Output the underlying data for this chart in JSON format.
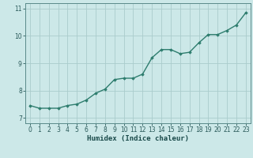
{
  "x": [
    0,
    1,
    2,
    3,
    4,
    5,
    6,
    7,
    8,
    9,
    10,
    11,
    12,
    13,
    14,
    15,
    16,
    17,
    18,
    19,
    20,
    21,
    22,
    23
  ],
  "y": [
    7.45,
    7.35,
    7.35,
    7.35,
    7.45,
    7.5,
    7.65,
    7.9,
    8.05,
    8.4,
    8.45,
    8.45,
    8.6,
    9.2,
    9.5,
    9.5,
    9.35,
    9.4,
    9.75,
    10.05,
    10.05,
    10.2,
    10.4,
    10.85
  ],
  "line_color": "#2e7d6e",
  "marker": "D",
  "marker_size": 1.8,
  "line_width": 1.0,
  "bg_color": "#cce8e8",
  "grid_color": "#aacccc",
  "xlabel": "Humidex (Indice chaleur)",
  "xlabel_fontsize": 6.5,
  "tick_fontsize": 5.5,
  "ylim": [
    6.8,
    11.2
  ],
  "xlim": [
    -0.5,
    23.5
  ],
  "yticks": [
    7,
    8,
    9,
    10,
    11
  ],
  "xticks": [
    0,
    1,
    2,
    3,
    4,
    5,
    6,
    7,
    8,
    9,
    10,
    11,
    12,
    13,
    14,
    15,
    16,
    17,
    18,
    19,
    20,
    21,
    22,
    23
  ]
}
